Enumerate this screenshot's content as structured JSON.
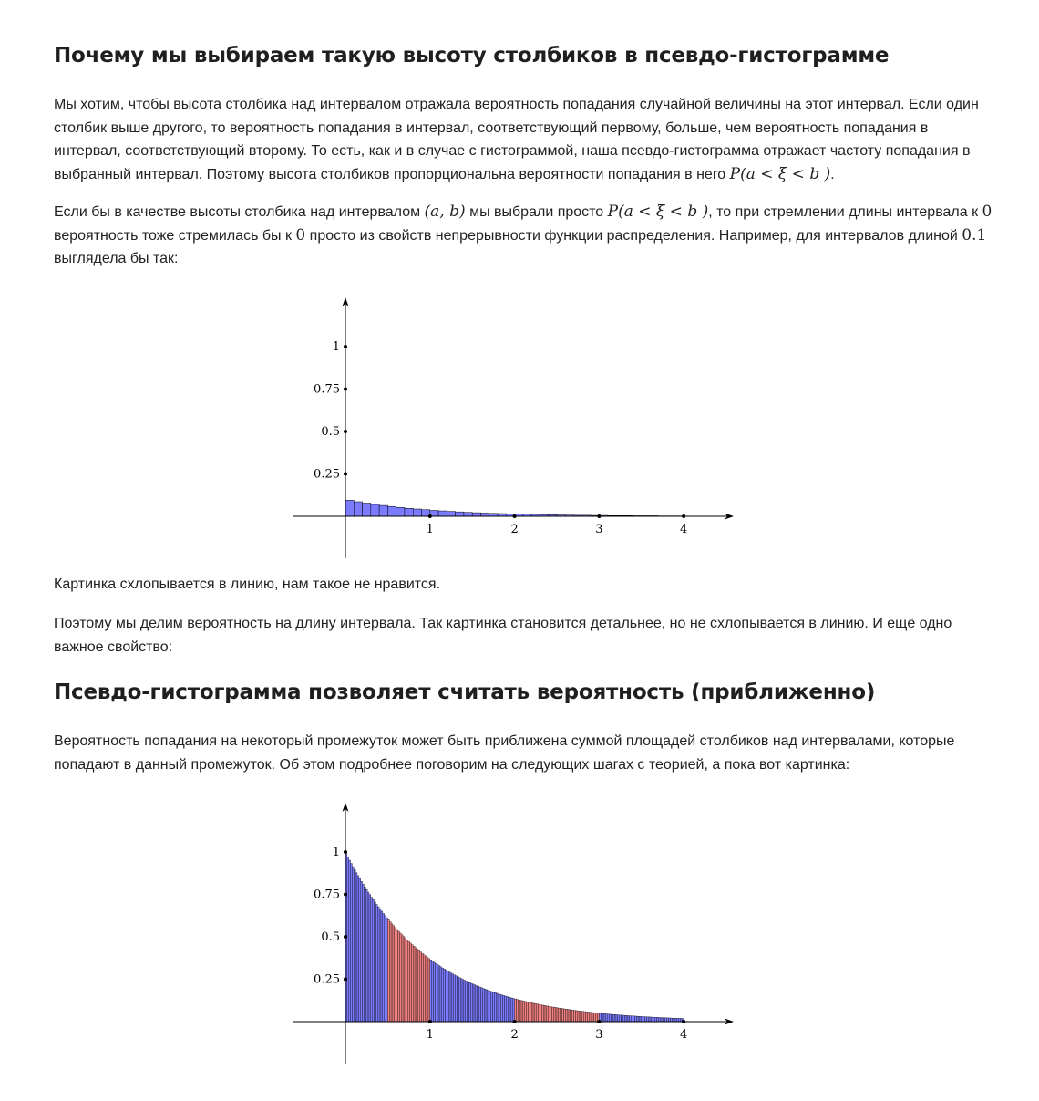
{
  "section1": {
    "title": "Почему мы выбираем такую высоту столбиков в псевдо-гистограмме",
    "p1_text": "Мы хотим, чтобы высота столбика над интервалом отражала вероятность попадания случайной величины на этот интервал. Если один столбик выше другого, то вероятность попадания в интервал, соответствующий первому, больше, чем вероятность попадания в интервал, соответствующий второму. То есть, как и в случае с гистограммой, наша псевдо-гистограмма отражает частоту попадания в выбранный интервал. Поэтому высота столбиков пропорциональна вероятности попадания в него ",
    "p1_formula": "P(a < ξ < b )",
    "p1_end": ".",
    "p2_a": "Если бы в качестве высоты столбика над интервалом ",
    "p2_f1": "(a, b)",
    "p2_b": " мы выбрали просто ",
    "p2_f2": "P(a < ξ < b )",
    "p2_c": ", то при стремлении длины интервала к ",
    "p2_f3": "0",
    "p2_d": " вероятность тоже стремилась бы к ",
    "p2_f4": "0",
    "p2_e": " просто из свойств непрерывности функции распределения. Например, для интервалов длиной ",
    "p2_f5": "0.1",
    "p2_f": " выглядела бы так:",
    "p3": "Картинка схлопывается в линию, нам такое не нравится.",
    "p4": "Поэтому мы делим вероятность на длину интервала. Так картинка становится детальнее, но не схлопывается в линию. И ещё одно важное свойство:"
  },
  "section2": {
    "title": "Псевдо-гистограмма позволяет считать вероятность (приближенно)",
    "p1": "Вероятность попадания на некоторый промежуток может быть приближена суммой площадей столбиков над интервалами, которые попадают в данный промежуток. Об этом подробнее поговорим на следующих шагах с теорией, а пока вот картинка:"
  },
  "chart_data": [
    {
      "type": "bar",
      "density": "exp(-x)",
      "bin_width": 0.1,
      "bar_value": "probability of interval",
      "x_range": [
        0,
        4
      ],
      "ylim": [
        0,
        1
      ],
      "x_ticks": [
        "1",
        "2",
        "3",
        "4"
      ],
      "y_ticks": [
        "0.25",
        "0.5",
        "0.75",
        "1"
      ],
      "color": "#7b7bff",
      "values": [
        0.095,
        0.086,
        0.078,
        0.07,
        0.064,
        0.058,
        0.052,
        0.047,
        0.043,
        0.039,
        0.035,
        0.032,
        0.029,
        0.026,
        0.023,
        0.021,
        0.019,
        0.017,
        0.016,
        0.014,
        0.013,
        0.012,
        0.011,
        0.01,
        0.009,
        0.008,
        0.007,
        0.006,
        0.006,
        0.005,
        0.005,
        0.004,
        0.004,
        0.004,
        0.003,
        0.003,
        0.003,
        0.002,
        0.002,
        0.002
      ]
    },
    {
      "type": "bar",
      "density": "exp(-x)",
      "bin_width": 0.02,
      "bar_value": "probability / interval length",
      "x_range": [
        0,
        4
      ],
      "ylim": [
        0,
        1
      ],
      "x_ticks": [
        "1",
        "2",
        "3",
        "4"
      ],
      "y_ticks": [
        "0.25",
        "0.5",
        "0.75",
        "1"
      ],
      "color": "#7b7bff",
      "highlight_color": "#f08080",
      "highlight_ranges": [
        [
          0.5,
          1.0
        ],
        [
          2.0,
          3.0
        ]
      ]
    }
  ]
}
